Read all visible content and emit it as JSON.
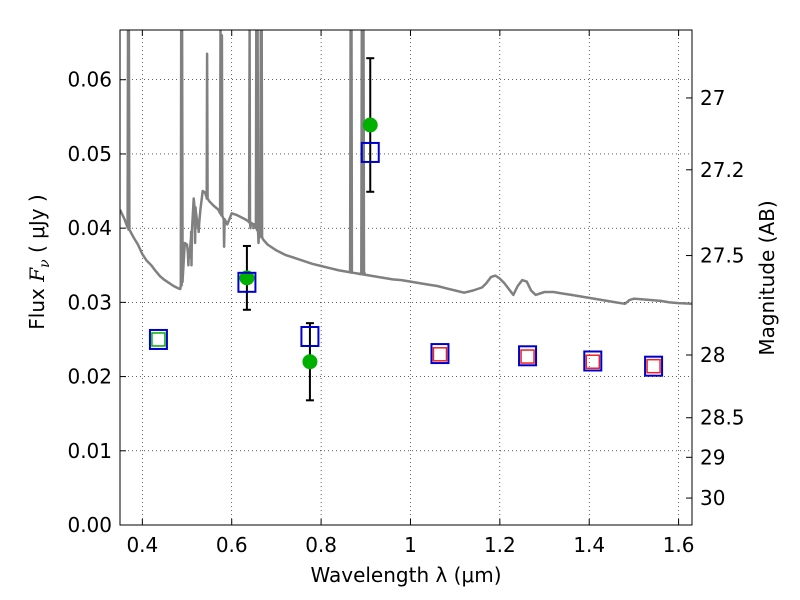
{
  "chart_data": {
    "type": "scatter",
    "xlabel": "Wavelength  λ (μm)",
    "ylabel_parts": [
      "Flux  ",
      "F",
      "ν",
      "  (  μJy  )"
    ],
    "y2label": "Magnitude (AB)",
    "xlim": [
      0.35,
      1.63
    ],
    "ylim": [
      0.0,
      0.0667
    ],
    "grid": true,
    "x_ticks": [
      0.4,
      0.6,
      0.8,
      1.0,
      1.2,
      1.4,
      1.6
    ],
    "x_tick_labels": [
      "0.4",
      "0.6",
      "0.8",
      "1",
      "1.2",
      "1.4",
      "1.6"
    ],
    "y_ticks": [
      0.0,
      0.01,
      0.02,
      0.03,
      0.04,
      0.05,
      0.06
    ],
    "y_tick_labels": [
      "0.00",
      "0.01",
      "0.02",
      "0.03",
      "0.04",
      "0.05",
      "0.06"
    ],
    "y2_ticks": [
      27,
      27.2,
      27.5,
      28,
      28.5,
      29,
      30
    ],
    "y2_tick_labels": [
      "27",
      "27.2",
      "27.5",
      "28",
      "28.5",
      "29",
      "30"
    ],
    "colors": {
      "model": "#808080",
      "observed": "#00b000",
      "model_box": "#0000cc",
      "red_box": "#ee2222",
      "green_box": "#00b000",
      "error_bar": "#000000"
    },
    "series": [
      {
        "kind": "line",
        "points": [
          [
            0.35,
            0.0425
          ],
          [
            0.36,
            0.0412
          ],
          [
            0.37,
            0.0398
          ],
          [
            0.38,
            0.0388
          ],
          [
            0.39,
            0.0378
          ],
          [
            0.4,
            0.0365
          ],
          [
            0.41,
            0.0356
          ],
          [
            0.42,
            0.035
          ],
          [
            0.43,
            0.0342
          ],
          [
            0.44,
            0.0335
          ],
          [
            0.45,
            0.033
          ],
          [
            0.46,
            0.0326
          ],
          [
            0.47,
            0.0322
          ],
          [
            0.48,
            0.0319
          ],
          [
            0.485,
            0.0318
          ],
          [
            0.49,
            0.033
          ],
          [
            0.495,
            0.038
          ],
          [
            0.5,
            0.0378
          ],
          [
            0.505,
            0.036
          ],
          [
            0.51,
            0.0395
          ],
          [
            0.515,
            0.044
          ],
          [
            0.52,
            0.042
          ],
          [
            0.525,
            0.04
          ],
          [
            0.53,
            0.0425
          ],
          [
            0.535,
            0.045
          ],
          [
            0.54,
            0.0448
          ],
          [
            0.545,
            0.044
          ],
          [
            0.55,
            0.0436
          ],
          [
            0.56,
            0.043
          ],
          [
            0.57,
            0.0425
          ],
          [
            0.58,
            0.0415
          ],
          [
            0.59,
            0.0405
          ],
          [
            0.6,
            0.042
          ],
          [
            0.61,
            0.0418
          ],
          [
            0.62,
            0.0415
          ],
          [
            0.63,
            0.0412
          ],
          [
            0.64,
            0.0408
          ],
          [
            0.65,
            0.0405
          ],
          [
            0.66,
            0.0395
          ],
          [
            0.67,
            0.0385
          ],
          [
            0.68,
            0.0378
          ],
          [
            0.7,
            0.037
          ],
          [
            0.72,
            0.0364
          ],
          [
            0.74,
            0.036
          ],
          [
            0.76,
            0.0356
          ],
          [
            0.78,
            0.0352
          ],
          [
            0.8,
            0.0349
          ],
          [
            0.82,
            0.0346
          ],
          [
            0.84,
            0.0343
          ],
          [
            0.86,
            0.0341
          ],
          [
            0.88,
            0.0339
          ],
          [
            0.9,
            0.0337
          ],
          [
            0.92,
            0.0335
          ],
          [
            0.94,
            0.0333
          ],
          [
            0.96,
            0.0331
          ],
          [
            0.98,
            0.033
          ],
          [
            1.0,
            0.0328
          ],
          [
            1.02,
            0.0326
          ],
          [
            1.04,
            0.0324
          ],
          [
            1.06,
            0.0322
          ],
          [
            1.08,
            0.0319
          ],
          [
            1.1,
            0.0316
          ],
          [
            1.12,
            0.0313
          ],
          [
            1.14,
            0.0316
          ],
          [
            1.16,
            0.032
          ],
          [
            1.17,
            0.0326
          ],
          [
            1.18,
            0.0334
          ],
          [
            1.19,
            0.0336
          ],
          [
            1.2,
            0.0332
          ],
          [
            1.21,
            0.0326
          ],
          [
            1.22,
            0.0318
          ],
          [
            1.23,
            0.031
          ],
          [
            1.24,
            0.0322
          ],
          [
            1.25,
            0.033
          ],
          [
            1.26,
            0.0328
          ],
          [
            1.27,
            0.0316
          ],
          [
            1.28,
            0.031
          ],
          [
            1.3,
            0.0314
          ],
          [
            1.32,
            0.0314
          ],
          [
            1.34,
            0.0312
          ],
          [
            1.36,
            0.031
          ],
          [
            1.38,
            0.0308
          ],
          [
            1.4,
            0.0306
          ],
          [
            1.42,
            0.0304
          ],
          [
            1.44,
            0.0302
          ],
          [
            1.46,
            0.03
          ],
          [
            1.48,
            0.0298
          ],
          [
            1.49,
            0.0303
          ],
          [
            1.5,
            0.0305
          ],
          [
            1.52,
            0.0304
          ],
          [
            1.54,
            0.0303
          ],
          [
            1.56,
            0.0302
          ],
          [
            1.58,
            0.03
          ],
          [
            1.6,
            0.0299
          ],
          [
            1.63,
            0.0298
          ]
        ],
        "spikes": [
          [
            0.368,
            0.0667
          ],
          [
            0.37,
            0.0667
          ],
          [
            0.487,
            0.0667
          ],
          [
            0.489,
            0.0667
          ],
          [
            0.503,
            0.035
          ],
          [
            0.51,
            0.035
          ],
          [
            0.518,
            0.038
          ],
          [
            0.526,
            0.0395
          ],
          [
            0.545,
            0.0635
          ],
          [
            0.575,
            0.0667
          ],
          [
            0.578,
            0.066
          ],
          [
            0.583,
            0.0375
          ],
          [
            0.64,
            0.0667
          ],
          [
            0.642,
            0.04
          ],
          [
            0.649,
            0.04
          ],
          [
            0.655,
            0.0667
          ],
          [
            0.658,
            0.0667
          ],
          [
            0.66,
            0.038
          ],
          [
            0.665,
            0.0667
          ],
          [
            0.667,
            0.0667
          ],
          [
            0.866,
            0.0667
          ],
          [
            0.868,
            0.0667
          ],
          [
            0.869,
            0.034
          ],
          [
            0.871,
            0.034
          ],
          [
            0.889,
            0.034
          ],
          [
            0.891,
            0.0667
          ],
          [
            0.895,
            0.0667
          ],
          [
            0.897,
            0.034
          ]
        ]
      },
      {
        "kind": "errorbar",
        "points": [
          {
            "x": 0.634,
            "y": 0.0333,
            "yerr": 0.0043
          },
          {
            "x": 0.775,
            "y": 0.022,
            "yerr": 0.0052
          },
          {
            "x": 0.91,
            "y": 0.0539,
            "yerr": 0.009
          }
        ]
      },
      {
        "kind": "green-dot",
        "points": [
          {
            "x": 0.634,
            "y": 0.0333
          },
          {
            "x": 0.775,
            "y": 0.022
          },
          {
            "x": 0.91,
            "y": 0.0539
          }
        ]
      },
      {
        "kind": "small-box",
        "points": [
          {
            "x": 0.436,
            "y": 0.025,
            "color": "green_box"
          },
          {
            "x": 1.066,
            "y": 0.023,
            "color": "red_box"
          },
          {
            "x": 1.262,
            "y": 0.0227,
            "color": "red_box"
          },
          {
            "x": 1.408,
            "y": 0.022,
            "color": "red_box"
          },
          {
            "x": 1.544,
            "y": 0.0214,
            "color": "red_box"
          }
        ]
      },
      {
        "kind": "large-box",
        "points": [
          {
            "x": 0.436,
            "y": 0.025
          },
          {
            "x": 0.634,
            "y": 0.0327
          },
          {
            "x": 0.775,
            "y": 0.0254
          },
          {
            "x": 0.91,
            "y": 0.0502
          },
          {
            "x": 1.066,
            "y": 0.0231
          },
          {
            "x": 1.262,
            "y": 0.0228
          },
          {
            "x": 1.408,
            "y": 0.0221
          },
          {
            "x": 1.544,
            "y": 0.0214
          }
        ]
      }
    ]
  }
}
